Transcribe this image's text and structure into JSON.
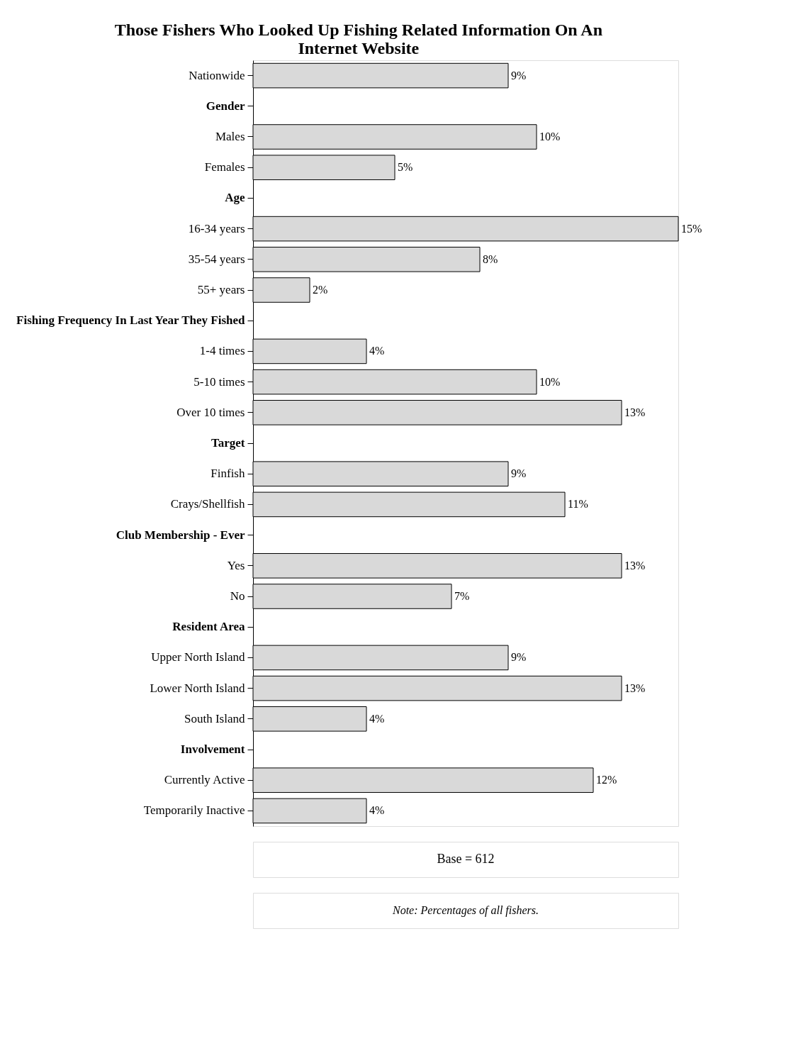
{
  "chart_data": {
    "type": "bar",
    "orientation": "horizontal",
    "title": "Those Fishers Who Looked Up Fishing Related Information On An Internet Website",
    "categories": [
      "Nationwide",
      "Gender",
      "Males",
      "Females",
      "Age",
      "16-34 years",
      "35-54 years",
      "55+ years",
      "Fishing Frequency In Last Year They Fished",
      "1-4 times",
      "5-10 times",
      "Over 10 times",
      "Target",
      "Finfish",
      "Crays/Shellfish",
      "Club Membership - Ever",
      "Yes",
      "No",
      "Resident Area",
      "Upper North Island",
      "Lower North Island",
      "South Island",
      "Involvement",
      "Currently Active",
      "Temporarily Inactive"
    ],
    "values": [
      9,
      null,
      10,
      5,
      null,
      15,
      8,
      2,
      null,
      4,
      10,
      13,
      null,
      9,
      11,
      null,
      13,
      7,
      null,
      9,
      13,
      4,
      null,
      12,
      4
    ],
    "value_labels": [
      "9%",
      null,
      "10%",
      "5%",
      null,
      "15%",
      "8%",
      "2%",
      null,
      "4%",
      "10%",
      "13%",
      null,
      "9%",
      "11%",
      null,
      "13%",
      "7%",
      null,
      "9%",
      "13%",
      "4%",
      null,
      "12%",
      "4%"
    ],
    "color": "#d9d9d9",
    "annotations": [
      "Base = 612",
      "Note:  Percentages of all fishers."
    ]
  }
}
